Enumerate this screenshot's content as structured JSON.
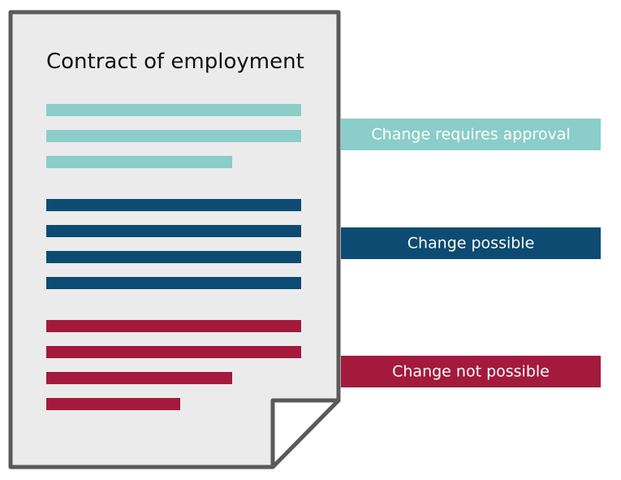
{
  "document": {
    "title": "Contract of employment"
  },
  "labels": [
    "Change requires approval",
    "Change possible",
    "Change not possible"
  ]
}
